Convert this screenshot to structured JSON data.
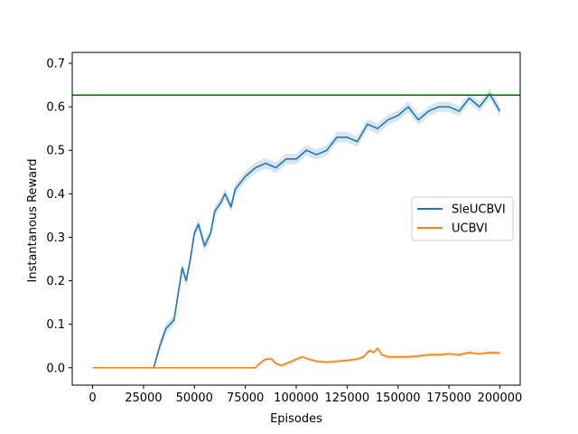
{
  "chart_data": {
    "type": "line",
    "title": "",
    "xlabel": "Episodes",
    "ylabel": "Instantanous Reward",
    "xlim": [
      -10000,
      210000
    ],
    "ylim": [
      -0.04,
      0.725
    ],
    "x_ticks": [
      0,
      25000,
      50000,
      75000,
      100000,
      125000,
      150000,
      175000,
      200000
    ],
    "x_tick_labels": [
      "0",
      "25000",
      "50000",
      "75000",
      "100000",
      "125000",
      "150000",
      "175000",
      "200000"
    ],
    "y_ticks": [
      0.0,
      0.1,
      0.2,
      0.3,
      0.4,
      0.5,
      0.6,
      0.7
    ],
    "y_tick_labels": [
      "0.0",
      "0.1",
      "0.2",
      "0.3",
      "0.4",
      "0.5",
      "0.6",
      "0.7"
    ],
    "grid": false,
    "legend_position": "center-right",
    "reference_line": {
      "y": 0.627,
      "color": "#008000"
    },
    "series": [
      {
        "name": "SleUCBVI",
        "color": "#1f77b4",
        "x": [
          0,
          30000,
          33000,
          36000,
          40000,
          42000,
          44000,
          46000,
          48000,
          50000,
          52000,
          55000,
          58000,
          60000,
          63000,
          65000,
          68000,
          70000,
          75000,
          80000,
          85000,
          90000,
          95000,
          100000,
          105000,
          110000,
          115000,
          120000,
          125000,
          130000,
          135000,
          140000,
          145000,
          150000,
          155000,
          160000,
          165000,
          170000,
          175000,
          180000,
          185000,
          190000,
          195000,
          200000
        ],
        "values": [
          0.0,
          0.0,
          0.05,
          0.09,
          0.11,
          0.17,
          0.23,
          0.2,
          0.25,
          0.31,
          0.33,
          0.28,
          0.31,
          0.36,
          0.38,
          0.4,
          0.37,
          0.41,
          0.44,
          0.46,
          0.47,
          0.46,
          0.48,
          0.48,
          0.5,
          0.49,
          0.5,
          0.53,
          0.53,
          0.52,
          0.56,
          0.55,
          0.57,
          0.58,
          0.6,
          0.57,
          0.59,
          0.6,
          0.6,
          0.59,
          0.62,
          0.6,
          0.63,
          0.59
        ]
      },
      {
        "name": "UCBVI",
        "color": "#ff7f0e",
        "x": [
          0,
          80000,
          82000,
          85000,
          88000,
          90000,
          93000,
          95000,
          98000,
          100000,
          103000,
          106000,
          110000,
          115000,
          120000,
          125000,
          130000,
          133000,
          136000,
          138000,
          140000,
          142000,
          145000,
          150000,
          155000,
          160000,
          165000,
          170000,
          175000,
          180000,
          185000,
          190000,
          195000,
          200000
        ],
        "values": [
          0.0,
          0.0,
          0.01,
          0.02,
          0.02,
          0.01,
          0.005,
          0.01,
          0.015,
          0.02,
          0.025,
          0.02,
          0.015,
          0.013,
          0.015,
          0.017,
          0.02,
          0.025,
          0.04,
          0.035,
          0.045,
          0.03,
          0.025,
          0.025,
          0.025,
          0.027,
          0.03,
          0.03,
          0.032,
          0.03,
          0.035,
          0.032,
          0.035,
          0.034
        ]
      }
    ]
  }
}
